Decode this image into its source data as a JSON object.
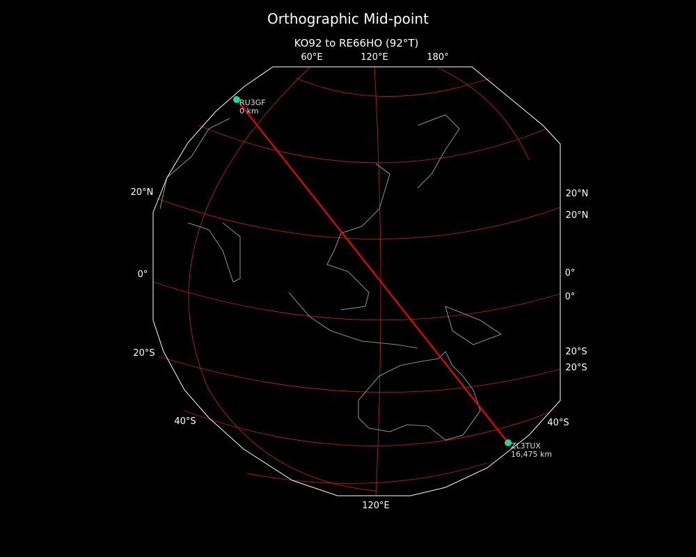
{
  "title": "Orthographic Mid-point",
  "subtitle": "KO92 to RE66HO (92°T)",
  "projection": "orthographic",
  "colors": {
    "background": "#000000",
    "gridlines": "#b22222",
    "route": "#ff0000",
    "stations": "#20d8a0",
    "coastlines": "#888888",
    "outline": "#ffffff"
  },
  "top_labels": [
    "60°E",
    "120°E",
    "180°"
  ],
  "bottom_labels": [
    "120°E"
  ],
  "left_labels": [
    "20°N",
    "0°",
    "20°S",
    "40°S"
  ],
  "right_labels": [
    "20°N",
    "20°N",
    "0°",
    "0°",
    "20°S",
    "20°S",
    "40°S"
  ],
  "stations": [
    {
      "call": "RU3GF",
      "distance": "0 km"
    },
    {
      "call": "ZL3TUX",
      "distance": "16,475 km"
    }
  ]
}
